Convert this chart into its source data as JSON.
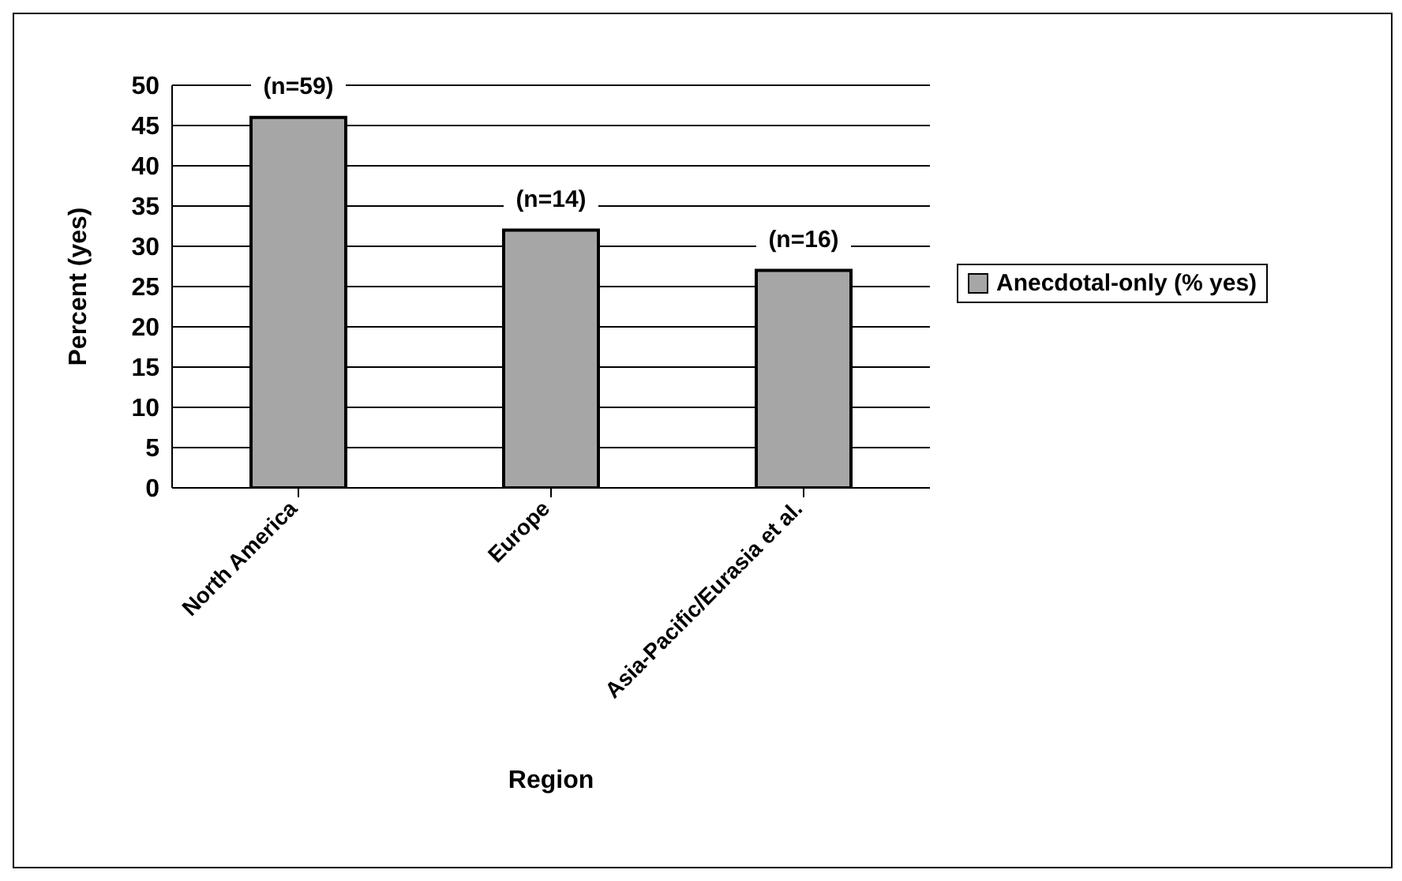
{
  "chart_data": {
    "type": "bar",
    "categories": [
      "North America",
      "Europe",
      "Asia-Pacific/Eurasia et al."
    ],
    "series": [
      {
        "name": "Anecdotal-only (% yes)",
        "color": "#a6a6a6",
        "values": [
          46,
          32,
          27
        ]
      }
    ],
    "xlabel": "Region",
    "ylabel": "Percent (yes)",
    "ylim": [
      0,
      50
    ],
    "yticks": [
      0,
      5,
      10,
      15,
      20,
      25,
      30,
      35,
      40,
      45,
      50
    ],
    "grid": "y",
    "legend": "right",
    "annotations": [
      {
        "text": "(n=59)",
        "x": "North America",
        "y": 46
      },
      {
        "text": "(n=14)",
        "x": "Europe",
        "y": 32
      },
      {
        "text": "(n=16)",
        "x": "Asia-Pacific/Eurasia et al.",
        "y": 27
      }
    ]
  }
}
